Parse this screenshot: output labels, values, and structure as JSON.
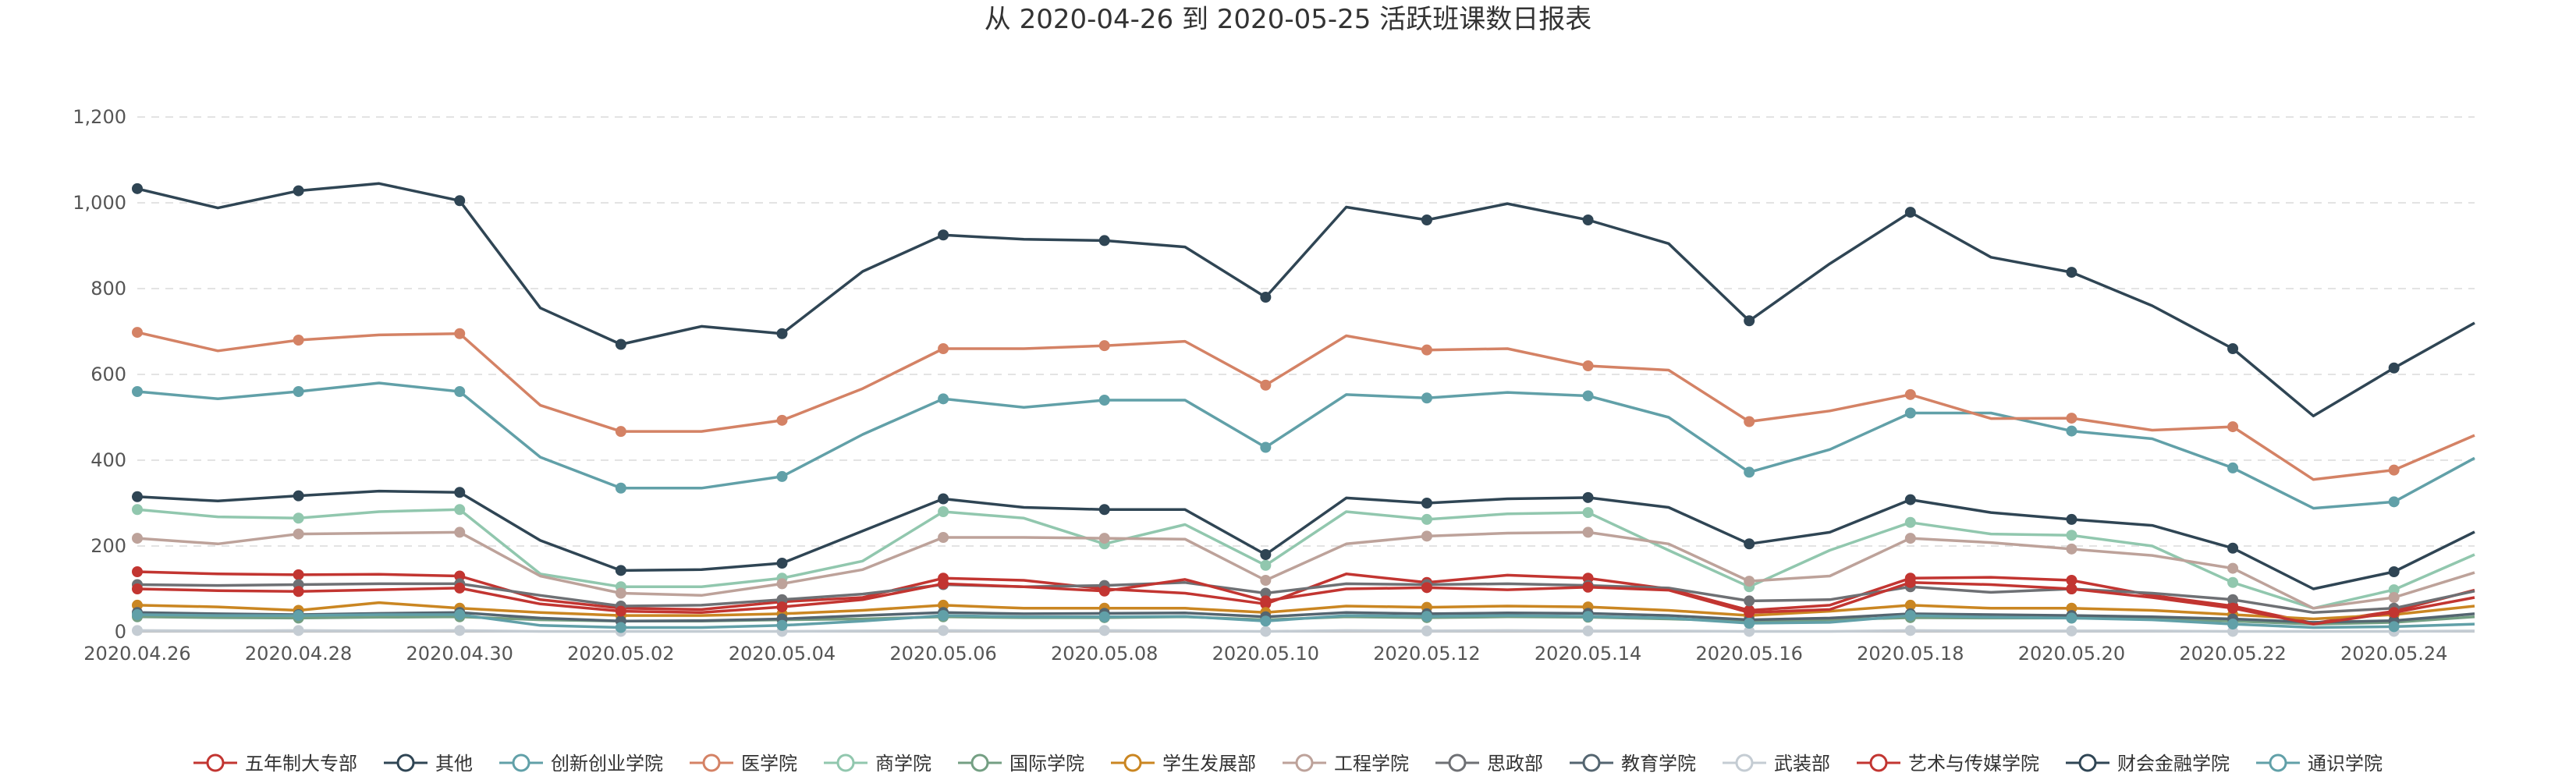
{
  "chart_data": {
    "type": "line",
    "title": "从 2020-04-26 到 2020-05-25 活跃班课数日报表",
    "xlabel": "",
    "ylabel": "",
    "ylim": [
      0,
      1200
    ],
    "yticks": [
      "0",
      "200",
      "400",
      "600",
      "800",
      "1,000",
      "1,200"
    ],
    "grid": "horizontal dashed",
    "legend_position": "bottom-center",
    "x": [
      "2020.04.26",
      "2020.04.27",
      "2020.04.28",
      "2020.04.29",
      "2020.04.30",
      "2020.05.01",
      "2020.05.02",
      "2020.05.03",
      "2020.05.04",
      "2020.05.05",
      "2020.05.06",
      "2020.05.07",
      "2020.05.08",
      "2020.05.09",
      "2020.05.10",
      "2020.05.11",
      "2020.05.12",
      "2020.05.13",
      "2020.05.14",
      "2020.05.15",
      "2020.05.16",
      "2020.05.17",
      "2020.05.18",
      "2020.05.19",
      "2020.05.20",
      "2020.05.21",
      "2020.05.22",
      "2020.05.23",
      "2020.05.24",
      "2020.05.25"
    ],
    "xtick_labels": [
      "2020.04.26",
      "2020.04.28",
      "2020.04.30",
      "2020.05.02",
      "2020.05.04",
      "2020.05.06",
      "2020.05.08",
      "2020.05.10",
      "2020.05.12",
      "2020.05.14",
      "2020.05.16",
      "2020.05.18",
      "2020.05.20",
      "2020.05.22",
      "2020.05.24"
    ],
    "series": [
      {
        "name": "五年制大专部",
        "color": "#c23531",
        "values": [
          140,
          135,
          133,
          134,
          130,
          75,
          55,
          52,
          70,
          80,
          125,
          120,
          100,
          90,
          65,
          135,
          115,
          132,
          125,
          100,
          50,
          62,
          125,
          127,
          120,
          85,
          60,
          20,
          48,
          97
        ]
      },
      {
        "name": "其他",
        "color": "#2f4554",
        "values": [
          1033,
          988,
          1028,
          1045,
          1005,
          755,
          670,
          712,
          695,
          840,
          925,
          915,
          912,
          897,
          780,
          990,
          960,
          998,
          960,
          905,
          725,
          858,
          978,
          873,
          838,
          760,
          660,
          503,
          615,
          720
        ]
      },
      {
        "name": "创新创业学院",
        "color": "#61a0a8",
        "values": [
          560,
          543,
          560,
          580,
          560,
          407,
          335,
          335,
          362,
          460,
          543,
          523,
          540,
          540,
          430,
          553,
          545,
          558,
          550,
          500,
          372,
          425,
          510,
          510,
          468,
          450,
          382,
          288,
          303,
          405
        ]
      },
      {
        "name": "医学院",
        "color": "#d48265",
        "values": [
          698,
          655,
          680,
          692,
          695,
          528,
          467,
          467,
          493,
          567,
          660,
          660,
          667,
          677,
          575,
          690,
          657,
          660,
          620,
          610,
          490,
          515,
          553,
          497,
          498,
          470,
          478,
          355,
          377,
          458
        ]
      },
      {
        "name": "商学院",
        "color": "#91c7ae",
        "values": [
          285,
          268,
          265,
          280,
          285,
          135,
          105,
          105,
          125,
          165,
          280,
          265,
          205,
          250,
          155,
          280,
          262,
          275,
          278,
          190,
          105,
          190,
          255,
          228,
          225,
          200,
          115,
          55,
          98,
          180
        ]
      },
      {
        "name": "国际学院",
        "color": "#749f83",
        "values": [
          35,
          33,
          32,
          34,
          35,
          28,
          25,
          25,
          28,
          30,
          35,
          33,
          33,
          35,
          28,
          35,
          33,
          35,
          34,
          30,
          25,
          28,
          33,
          32,
          32,
          30,
          25,
          18,
          22,
          35
        ]
      },
      {
        "name": "学生发展部",
        "color": "#ca8622",
        "values": [
          62,
          58,
          50,
          68,
          55,
          45,
          38,
          38,
          42,
          50,
          62,
          55,
          55,
          55,
          45,
          60,
          57,
          60,
          58,
          50,
          38,
          48,
          62,
          55,
          55,
          50,
          40,
          30,
          40,
          60
        ]
      },
      {
        "name": "工程学院",
        "color": "#bda29a",
        "values": [
          218,
          205,
          228,
          230,
          232,
          130,
          90,
          85,
          112,
          145,
          220,
          220,
          218,
          216,
          120,
          205,
          223,
          230,
          232,
          205,
          118,
          130,
          218,
          208,
          193,
          178,
          148,
          55,
          80,
          138
        ]
      },
      {
        "name": "思政部",
        "color": "#6e7074",
        "values": [
          110,
          108,
          110,
          112,
          112,
          85,
          60,
          62,
          75,
          88,
          110,
          105,
          108,
          115,
          90,
          112,
          110,
          112,
          108,
          102,
          72,
          75,
          105,
          92,
          100,
          90,
          75,
          45,
          55,
          95
        ]
      },
      {
        "name": "教育学院",
        "color": "#546570",
        "values": [
          45,
          42,
          40,
          43,
          45,
          32,
          25,
          26,
          30,
          38,
          45,
          42,
          43,
          44,
          35,
          45,
          42,
          44,
          43,
          38,
          28,
          32,
          42,
          40,
          38,
          35,
          30,
          22,
          26,
          42
        ]
      },
      {
        "name": "武装部",
        "color": "#c4ccd3",
        "values": [
          3,
          2,
          3,
          2,
          3,
          1,
          1,
          1,
          1,
          2,
          3,
          2,
          3,
          2,
          1,
          3,
          2,
          3,
          2,
          2,
          1,
          1,
          3,
          2,
          2,
          2,
          1,
          1,
          1,
          2
        ]
      },
      {
        "name": "艺术与传媒学院",
        "color": "#c23531",
        "values": [
          100,
          96,
          94,
          98,
          102,
          65,
          48,
          45,
          58,
          75,
          112,
          105,
          95,
          122,
          72,
          100,
          103,
          98,
          104,
          97,
          45,
          52,
          115,
          110,
          100,
          80,
          55,
          18,
          45,
          80
        ]
      },
      {
        "name": "财会金融学院",
        "color": "#2f4554",
        "values": [
          315,
          305,
          317,
          328,
          325,
          213,
          143,
          145,
          160,
          235,
          310,
          290,
          285,
          285,
          180,
          312,
          300,
          310,
          313,
          290,
          205,
          232,
          308,
          278,
          262,
          248,
          195,
          100,
          140,
          233
        ]
      },
      {
        "name": "通识学院",
        "color": "#61a0a8",
        "values": [
          40,
          38,
          38,
          40,
          40,
          15,
          10,
          10,
          15,
          25,
          38,
          35,
          35,
          36,
          25,
          38,
          36,
          38,
          36,
          32,
          20,
          22,
          38,
          34,
          32,
          28,
          18,
          10,
          12,
          18
        ]
      }
    ]
  }
}
